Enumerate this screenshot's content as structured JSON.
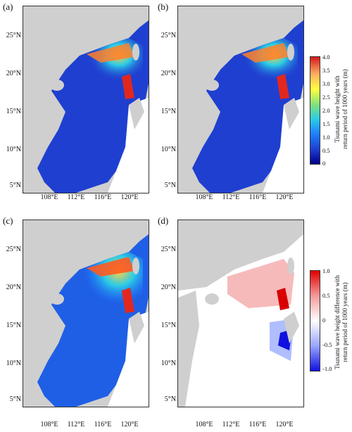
{
  "panels": [
    {
      "label": "(a)",
      "kind": "height"
    },
    {
      "label": "(b)",
      "kind": "height"
    },
    {
      "label": "(c)",
      "kind": "height"
    },
    {
      "label": "(d)",
      "kind": "difference"
    }
  ],
  "y_ticks": [
    "25°N",
    "20°N",
    "15°N",
    "10°N",
    "5°N"
  ],
  "x_ticks": [
    "108°E",
    "112°E",
    "116°E",
    "120°E"
  ],
  "colorbar_height": {
    "title_line1": "Tsunami wave height with",
    "title_line2": "return period of 1000 years (m)",
    "ticks": [
      "4.0",
      "3.5",
      "3.0",
      "2.5",
      "2.0",
      "1.5",
      "1.0",
      "0.5",
      "0"
    ],
    "colors": [
      "#d7191c",
      "#fdae61",
      "#ffff3f",
      "#7fe07f",
      "#2ccce6",
      "#1f7fff",
      "#1f3fd0",
      "#00008b"
    ]
  },
  "colorbar_diff": {
    "title_line1": "Tsunami wave height difference with",
    "title_line2": "return period of 1000 years (m)",
    "ticks": [
      "1.0",
      "0.5",
      "0",
      "-0.5",
      "-1.0"
    ],
    "colors": [
      "#e00000",
      "#ffffff",
      "#1010e0"
    ]
  }
}
